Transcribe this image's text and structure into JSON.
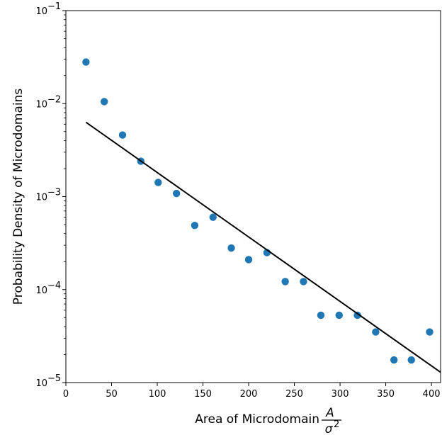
{
  "chart_data": {
    "type": "scatter",
    "title": "",
    "xlabel": "Area of Microdomain",
    "xlabel_fraction": {
      "numerator": "A",
      "denominator": "σ",
      "denominator_exponent": "2"
    },
    "ylabel": "Probability Density of Microdomains",
    "xlim": [
      0,
      410
    ],
    "ylim": [
      1e-05,
      0.1
    ],
    "yscale": "log",
    "grid": false,
    "legend": "none",
    "x_ticks": [
      {
        "value": 0,
        "label": "0"
      },
      {
        "value": 50,
        "label": "50"
      },
      {
        "value": 100,
        "label": "100"
      },
      {
        "value": 150,
        "label": "150"
      },
      {
        "value": 200,
        "label": "200"
      },
      {
        "value": 250,
        "label": "250"
      },
      {
        "value": 300,
        "label": "300"
      },
      {
        "value": 350,
        "label": "350"
      },
      {
        "value": 400,
        "label": "400"
      }
    ],
    "y_ticks": [
      {
        "value": 1e-05,
        "label": "10",
        "exponent": "−5"
      },
      {
        "value": 0.0001,
        "label": "10",
        "exponent": "−4"
      },
      {
        "value": 0.001,
        "label": "10",
        "exponent": "−3"
      },
      {
        "value": 0.01,
        "label": "10",
        "exponent": "−2"
      },
      {
        "value": 0.1,
        "label": "10",
        "exponent": "−1"
      }
    ],
    "series": [
      {
        "kind": "scatter",
        "color": "#1f77b4",
        "points": [
          {
            "x": 22,
            "y": 0.028
          },
          {
            "x": 42,
            "y": 0.0105
          },
          {
            "x": 62,
            "y": 0.0046
          },
          {
            "x": 82,
            "y": 0.0024
          },
          {
            "x": 101,
            "y": 0.00142
          },
          {
            "x": 121,
            "y": 0.00108
          },
          {
            "x": 141,
            "y": 0.00049
          },
          {
            "x": 161,
            "y": 0.0006
          },
          {
            "x": 181,
            "y": 0.00028
          },
          {
            "x": 200,
            "y": 0.00021
          },
          {
            "x": 220,
            "y": 0.00025
          },
          {
            "x": 240,
            "y": 0.000122
          },
          {
            "x": 260,
            "y": 0.000122
          },
          {
            "x": 279,
            "y": 5.3e-05
          },
          {
            "x": 299,
            "y": 5.3e-05
          },
          {
            "x": 319,
            "y": 5.3e-05
          },
          {
            "x": 339,
            "y": 3.5e-05
          },
          {
            "x": 359,
            "y": 1.75e-05
          },
          {
            "x": 378,
            "y": 1.75e-05
          },
          {
            "x": 398,
            "y": 3.5e-05
          }
        ]
      },
      {
        "kind": "line",
        "color": "#000000",
        "points": [
          {
            "x": 22,
            "y": 0.0063
          },
          {
            "x": 410,
            "y": 1.29e-05
          }
        ]
      }
    ]
  }
}
